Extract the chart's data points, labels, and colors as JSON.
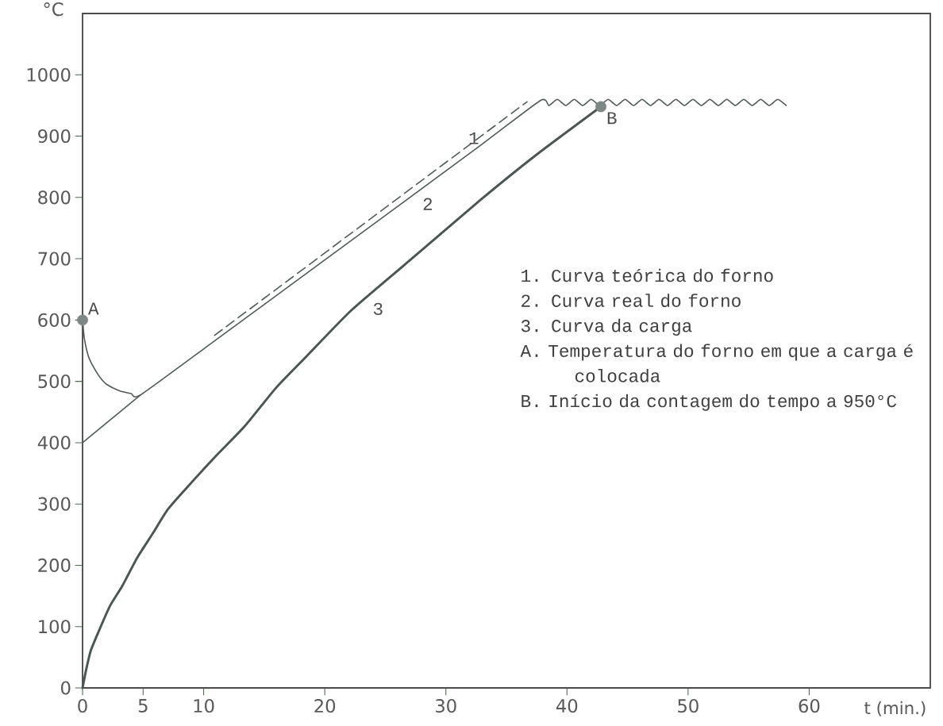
{
  "chart_data": {
    "type": "line",
    "xlabel": "t (min.)",
    "ylabel": "°C",
    "xlim": [
      0,
      70
    ],
    "ylim": [
      0,
      1100
    ],
    "xticks": [
      0,
      5,
      10,
      20,
      30,
      40,
      50,
      60
    ],
    "yticks": [
      0,
      100,
      200,
      300,
      400,
      500,
      600,
      700,
      800,
      900,
      1000
    ],
    "grid": false,
    "series": [
      {
        "line_style": "dashed",
        "color": "#4f5b59",
        "x": [
          10.9,
          36.7
        ],
        "values": [
          575,
          956
        ]
      },
      {
        "line_style": "solid",
        "color": "#4f5b59",
        "x": [
          0,
          4.8
        ],
        "values": [
          400,
          478
        ]
      },
      {
        "line_style": "solid",
        "color": "#4f5b59",
        "x": [
          0,
          0.15,
          0.5,
          1,
          1.5,
          2,
          3,
          4,
          4.8,
          10.9,
          20,
          32.6,
          37.8,
          38.5,
          39.2,
          39.9,
          40.6,
          41.3,
          42.0,
          42.7,
          43.4,
          44.1,
          44.8,
          45.5,
          46.2,
          46.9,
          47.6,
          48.3,
          49.0,
          49.7,
          50.4,
          51.1,
          51.8,
          52.5,
          53.2,
          53.9,
          54.6,
          55.3,
          56.0,
          56.7,
          57.4,
          58.1
        ],
        "values": [
          600,
          570,
          540,
          520,
          505,
          495,
          485,
          480,
          478,
          566,
          698,
          881,
          958,
          950,
          960,
          950,
          960,
          950,
          960,
          950,
          960,
          950,
          960,
          950,
          960,
          950,
          960,
          950,
          960,
          950,
          960,
          950,
          960,
          950,
          960,
          950,
          960,
          950,
          960,
          950,
          960,
          950
        ]
      },
      {
        "line_style": "solid",
        "color": "#4a5654",
        "x": [
          0,
          0.3,
          0.7,
          1.5,
          2.3,
          3.3,
          4.5,
          5.8,
          7,
          8.4,
          10.9,
          13.4,
          16,
          18.5,
          22.2,
          27,
          32.8,
          37.5,
          42.8
        ],
        "values": [
          0,
          30,
          62,
          100,
          135,
          167,
          212,
          252,
          290,
          322,
          376,
          427,
          490,
          541,
          616,
          697,
          795,
          870,
          948
        ]
      },
      {
        "type": "scatter",
        "marker": "circle",
        "color": "#7d8785",
        "x": [
          0,
          42.8
        ],
        "values": [
          600,
          948
        ]
      }
    ],
    "annotations": [
      {
        "text": "A",
        "x": 0,
        "y": 600
      },
      {
        "text": "B",
        "x": 42.8,
        "y": 948
      },
      {
        "text": "1",
        "x": 31.4,
        "y": 878
      },
      {
        "text": "2",
        "x": 27.6,
        "y": 808
      },
      {
        "text": "3",
        "x": 23.5,
        "y": 637
      },
      "1. Curva teórica do forno",
      "2. Curva real do forno",
      "3. Curva da carga",
      "A. Temperatura do forno em que a carga é colocada",
      "B. Início da contagem do tempo a 950°C"
    ]
  }
}
